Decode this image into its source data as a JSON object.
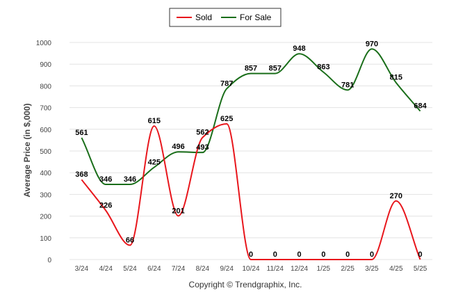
{
  "chart_data": {
    "type": "line",
    "title": "",
    "xlabel": "",
    "ylabel": "Average Price (in $,000)",
    "ylim": [
      0,
      1000
    ],
    "yticks": [
      0,
      100,
      200,
      300,
      400,
      500,
      600,
      700,
      800,
      900,
      1000
    ],
    "grid": "horizontal",
    "legend_position": "top-center",
    "categories": [
      "3/24",
      "4/24",
      "5/24",
      "6/24",
      "7/24",
      "8/24",
      "9/24",
      "10/24",
      "11/24",
      "12/24",
      "1/25",
      "2/25",
      "3/25",
      "4/25",
      "5/25"
    ],
    "series": [
      {
        "name": "Sold",
        "color": "#e8161c",
        "values": [
          368,
          226,
          66,
          615,
          201,
          562,
          625,
          0,
          0,
          0,
          0,
          0,
          0,
          270,
          0
        ]
      },
      {
        "name": "For Sale",
        "color": "#1a6e1a",
        "values": [
          561,
          346,
          346,
          425,
          496,
          493,
          787,
          857,
          857,
          948,
          863,
          781,
          970,
          815,
          684
        ]
      }
    ]
  },
  "footer": {
    "copyright": "Copyright © Trendgraphix, Inc."
  }
}
